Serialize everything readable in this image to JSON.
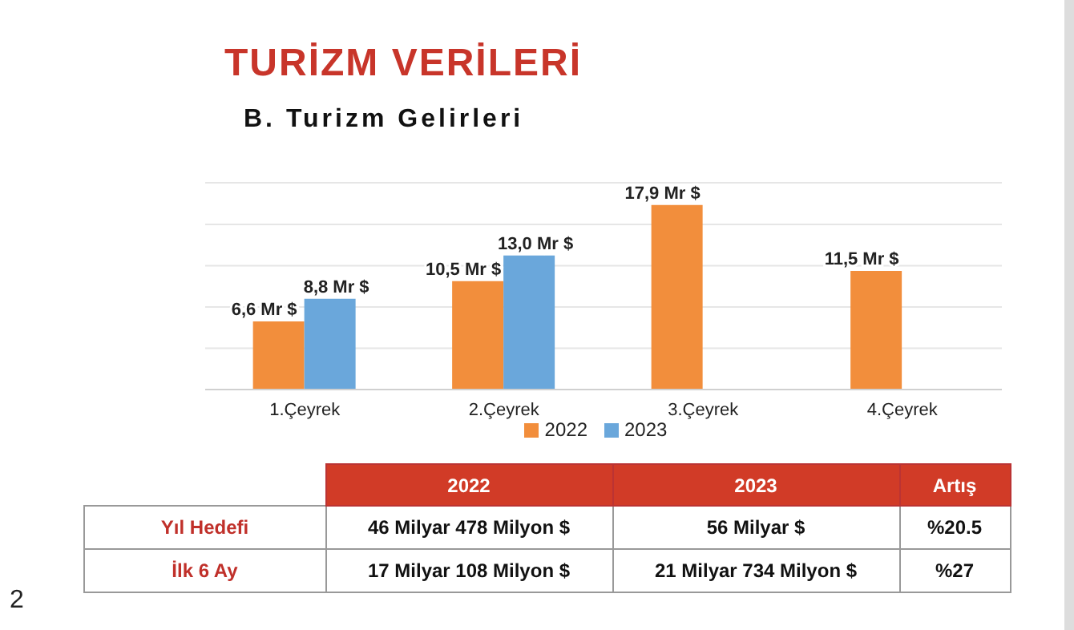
{
  "chart_data": [
    {
      "type": "bar",
      "title": "TURİZM VERİLERİ",
      "subtitle": "B. Turizm Gelirleri",
      "categories": [
        "1.Çeyrek",
        "2.Çeyrek",
        "3.Çeyrek",
        "4.Çeyrek"
      ],
      "series": [
        {
          "name": "2022",
          "color": "#f28e3c",
          "values": [
            6.6,
            10.5,
            17.9,
            11.5
          ],
          "value_labels": [
            "6,6 Mr $",
            "10,5 Mr $",
            "17,9 Mr $",
            "11,5 Mr $"
          ]
        },
        {
          "name": "2023",
          "color": "#6aa7db",
          "values": [
            8.8,
            13.0,
            null,
            null
          ],
          "value_labels": [
            "8,8 Mr $",
            "13,0 Mr $",
            null,
            null
          ]
        }
      ],
      "grid": "y",
      "legend": "bottom",
      "tick_labels": "x",
      "annotations": [
        "2"
      ]
    },
    {
      "type": "other",
      "categories": [
        "2022",
        "2023",
        "Artış"
      ],
      "y_categories": [
        "Yıl Hedefi",
        "İlk 6 Ay"
      ],
      "cell_labels": [
        [
          "46 Milyar 478 Milyon $",
          "56 Milyar $",
          "%20.5"
        ],
        [
          "17 Milyar 108 Milyon $",
          "21 Milyar 734 Milyon $",
          "%27"
        ]
      ]
    }
  ]
}
